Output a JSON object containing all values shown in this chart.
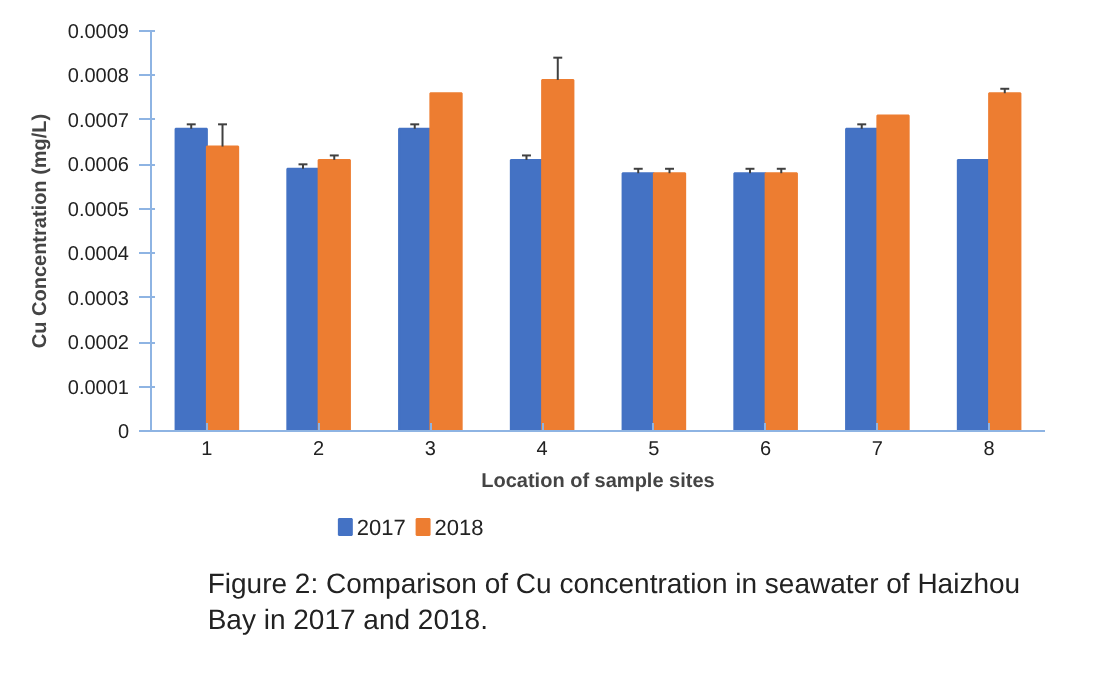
{
  "chart_data": {
    "type": "bar",
    "xlabel": "Location of sample sites",
    "ylabel": "Cu Concentration (mg/L)",
    "categories": [
      "1",
      "2",
      "3",
      "4",
      "5",
      "6",
      "7",
      "8"
    ],
    "series": [
      {
        "name": "2017",
        "color": "#4472c4",
        "values": [
          0.00068,
          0.00059,
          0.00068,
          0.00061,
          0.00058,
          0.00058,
          0.00068,
          0.00061
        ],
        "errors": [
          1e-05,
          1e-05,
          1e-05,
          1e-05,
          1e-05,
          1e-05,
          1e-05,
          null
        ]
      },
      {
        "name": "2018",
        "color": "#ed7d31",
        "values": [
          0.00064,
          0.00061,
          0.00076,
          0.00079,
          0.00058,
          0.00058,
          0.00071,
          0.00076
        ],
        "errors": [
          5e-05,
          1e-05,
          null,
          5e-05,
          1e-05,
          1e-05,
          null,
          1e-05
        ]
      }
    ],
    "ylim": [
      0,
      0.0009
    ],
    "yticks": [
      0,
      0.0001,
      0.0002,
      0.0003,
      0.0004,
      0.0005,
      0.0006,
      0.0007,
      0.0008,
      0.0009
    ],
    "grid": false,
    "legend": "bottom left",
    "annotations": [
      "Figure 2: Comparison of Cu concentration in seawater of Haizhou Bay in 2017 and 2018."
    ]
  }
}
